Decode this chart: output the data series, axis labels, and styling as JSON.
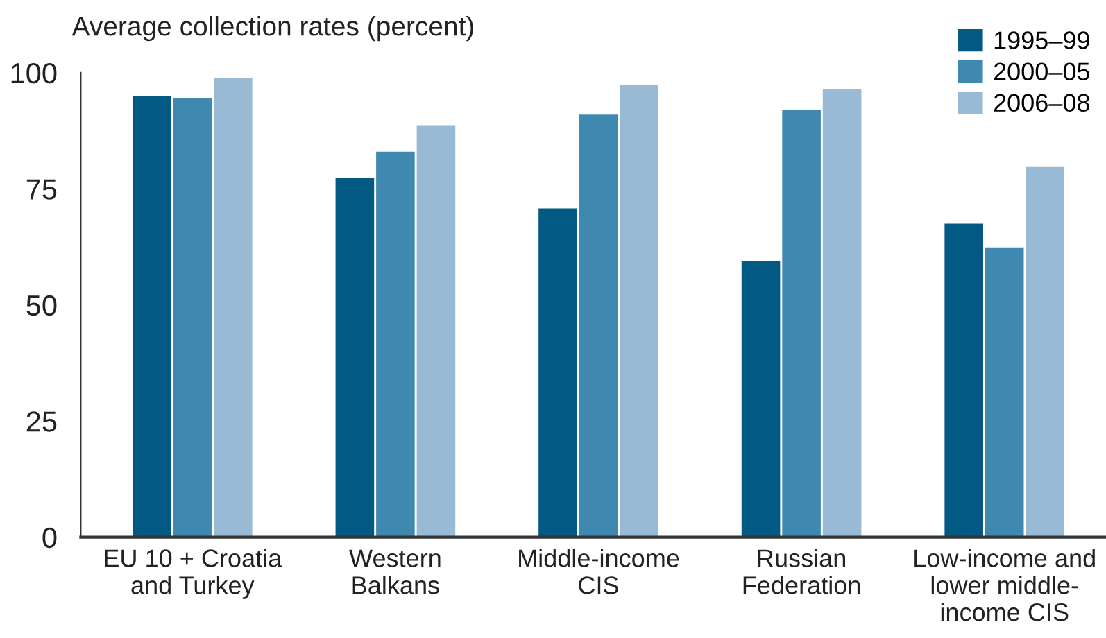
{
  "chart_data": {
    "type": "bar",
    "ylabel": "Average collection rates (percent)",
    "categories": [
      "EU 10 + Croatia\nand Turkey",
      "Western\nBalkans",
      "Middle-income\nCIS",
      "Russian\nFederation",
      "Low-income and\nlower middle-\nincome CIS"
    ],
    "series": [
      {
        "name": "1995–99",
        "color": "#025a84",
        "values": [
          95,
          77.3,
          70.8,
          59.5,
          67.5
        ]
      },
      {
        "name": "2000–05",
        "color": "#3f89b0",
        "values": [
          94.6,
          83,
          91,
          92,
          62.4
        ]
      },
      {
        "name": "2006–08",
        "color": "#98bad5",
        "values": [
          98.8,
          88.7,
          97.3,
          96.4,
          79.7
        ]
      }
    ],
    "ylim": [
      0,
      100
    ],
    "yticks": [
      0,
      25,
      50,
      75,
      100
    ],
    "grid": false,
    "legend": "top right"
  }
}
